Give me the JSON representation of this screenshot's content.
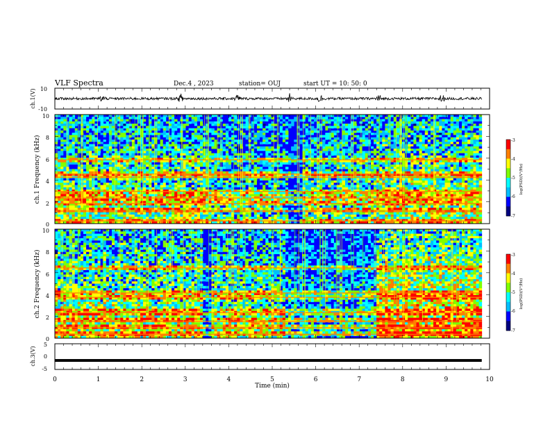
{
  "header": {
    "title": "VLF Spectra",
    "date": "Dec.4 , 2023",
    "station": "station= OUJ",
    "start": "start UT = 10: 50: 0"
  },
  "colors": {
    "colormap": [
      "#00007f",
      "#0000ff",
      "#00bfff",
      "#00ffff",
      "#7fff00",
      "#ffff00",
      "#ff7f00",
      "#ff0000",
      "#ffffff"
    ],
    "waveform": "#000000"
  },
  "chart_data": [
    {
      "type": "line",
      "name": "ch.1 waveform",
      "ylabel": "ch.1(V)",
      "ylim": [
        -10,
        10
      ],
      "yticks": [
        "10",
        "-10"
      ],
      "xlim": [
        0,
        10
      ],
      "bursts_min": [
        1.1,
        2.9,
        4.2,
        5.4,
        6.1,
        7.45,
        8.9
      ],
      "noise_amplitude_v": 1.2
    },
    {
      "type": "heatmap",
      "name": "ch.1 spectrogram",
      "ylabel": "ch.1 Frequency (kHz)",
      "ylim": [
        0,
        10
      ],
      "yticks": [
        "0",
        "2",
        "4",
        "6",
        "8",
        "10"
      ],
      "xlim": [
        0,
        9.82
      ],
      "colorbar": {
        "label": "log(PSD)(V²/Hz)",
        "range": [
          -7,
          -3
        ],
        "ticks": [
          "-3",
          "-4",
          "-5",
          "-6",
          "-7"
        ]
      },
      "segments_min": [
        {
          "start": 0.0,
          "end": 3.5,
          "level": 0.55
        },
        {
          "start": 3.5,
          "end": 5.4,
          "level": 0.45
        },
        {
          "start": 5.4,
          "end": 5.7,
          "level": 0.15
        },
        {
          "start": 5.7,
          "end": 7.4,
          "level": 0.5
        },
        {
          "start": 7.4,
          "end": 9.82,
          "level": 0.6
        }
      ],
      "bands_khz": [
        0.3,
        1.2,
        1.9,
        2.4,
        3.0,
        4.3,
        4.6,
        5.9
      ]
    },
    {
      "type": "heatmap",
      "name": "ch.2 spectrogram",
      "ylabel": "ch.2 Frequency (kHz)",
      "ylim": [
        0,
        10
      ],
      "yticks": [
        "0",
        "2",
        "4",
        "6",
        "8",
        "10"
      ],
      "xlim": [
        0,
        9.82
      ],
      "colorbar": {
        "label": "log(PSD)(V²/Hz)",
        "range": [
          -7,
          -3
        ],
        "ticks": [
          "-3",
          "-4",
          "-5",
          "-6",
          "-7"
        ]
      },
      "segments_min": [
        {
          "start": 0.0,
          "end": 3.4,
          "level": 0.6
        },
        {
          "start": 3.4,
          "end": 3.6,
          "level": 0.2
        },
        {
          "start": 3.6,
          "end": 5.3,
          "level": 0.55
        },
        {
          "start": 5.3,
          "end": 7.4,
          "level": 0.35
        },
        {
          "start": 7.4,
          "end": 9.82,
          "level": 0.75
        }
      ],
      "bands_khz": [
        0.4,
        1.0,
        1.6,
        2.4,
        3.8,
        4.2,
        6.5
      ]
    },
    {
      "type": "line",
      "name": "ch.3 waveform",
      "ylabel": "ch.3(V)",
      "ylim": [
        -5,
        5
      ],
      "yticks": [
        "5",
        "0",
        "-5"
      ],
      "xlim": [
        0,
        10
      ],
      "xlabel": "Time (min)",
      "xticks": [
        "0",
        "1",
        "2",
        "3",
        "4",
        "5",
        "6",
        "7",
        "8",
        "9",
        "10"
      ],
      "constant_value_v": -1.5
    }
  ]
}
